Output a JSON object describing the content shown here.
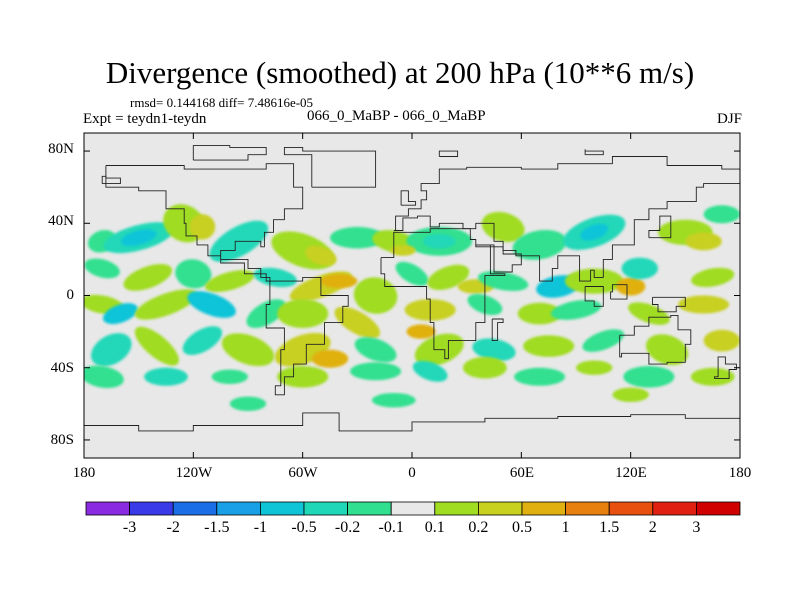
{
  "title": "Divergence (smoothed) at 200 hPa (10**6 m/s)",
  "stats_line": "rmsd= 0.144168 diff= 7.48616e-05",
  "expt_line": "Expt = teydn1-teydn",
  "runs_line": "066_0_MaBP - 066_0_MaBP",
  "season": "DJF",
  "lat_labels": [
    "80N",
    "40N",
    "0",
    "40S",
    "80S"
  ],
  "lon_labels": [
    "180",
    "120W",
    "60W",
    "0",
    "60E",
    "120E",
    "180"
  ],
  "colorbar": {
    "labels": [
      "-3",
      "-2",
      "-1.5",
      "-1",
      "-0.5",
      "-0.2",
      "-0.1",
      "0.1",
      "0.2",
      "0.5",
      "1",
      "1.5",
      "2",
      "3"
    ],
    "colors": [
      "#8a2be2",
      "#3a3ae8",
      "#1c6ee6",
      "#1aa0e6",
      "#10c4d8",
      "#20d8b8",
      "#30e090",
      "#e8e8e8",
      "#a0dc20",
      "#c8d020",
      "#e0b010",
      "#e88010",
      "#e85010",
      "#e02010",
      "#d00000"
    ]
  },
  "map": {
    "background_color": "#e8e8e8",
    "lon_range": [
      -180,
      180
    ],
    "lat_range": [
      -90,
      90
    ]
  }
}
